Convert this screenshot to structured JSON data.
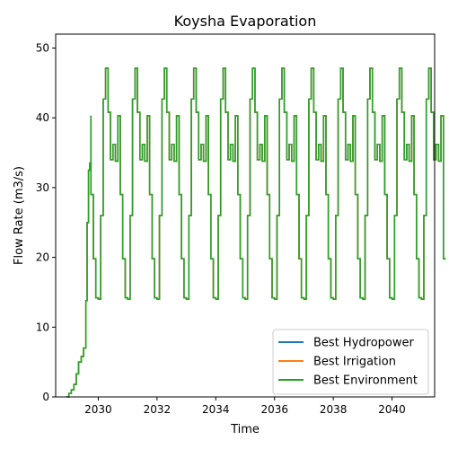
{
  "chart_data": {
    "type": "line",
    "title": "Koysha Evaporation",
    "xlabel": "Time",
    "ylabel": "Flow Rate (m3/s)",
    "xlim": [
      2028.55,
      2041.45
    ],
    "ylim": [
      0,
      52
    ],
    "xticks": [
      2030,
      2032,
      2034,
      2036,
      2038,
      2040
    ],
    "yticks": [
      0,
      10,
      20,
      30,
      40,
      50
    ],
    "legend_position": "bottom-right",
    "ramp": {
      "x": [
        2028.92,
        2029.0,
        2029.08,
        2029.17,
        2029.25,
        2029.33,
        2029.42,
        2029.5,
        2029.58,
        2029.62,
        2029.67,
        2029.71,
        2029.75
      ],
      "y": [
        0.0,
        0.5,
        1.0,
        1.8,
        3.3,
        5.0,
        5.8,
        7.0,
        13.8,
        25.0,
        32.5,
        33.5,
        40.3
      ]
    },
    "annual_pattern": {
      "month_offsets": [
        0.0,
        0.083,
        0.167,
        0.25,
        0.333,
        0.417,
        0.5,
        0.583,
        0.667,
        0.75,
        0.833,
        0.917
      ],
      "values": [
        29.0,
        19.8,
        14.2,
        14.0,
        26.0,
        42.7,
        47.1,
        40.8,
        34.0,
        36.2,
        33.8,
        40.3
      ],
      "first_year": 2029.75,
      "last_year": 2040.75
    },
    "end_value": 19.8,
    "series": [
      {
        "name": "Best Hydropower",
        "color": "#1f77b4"
      },
      {
        "name": "Best Irrigation",
        "color": "#ff7f0e"
      },
      {
        "name": "Best Environment",
        "color": "#2ca02c"
      }
    ]
  }
}
